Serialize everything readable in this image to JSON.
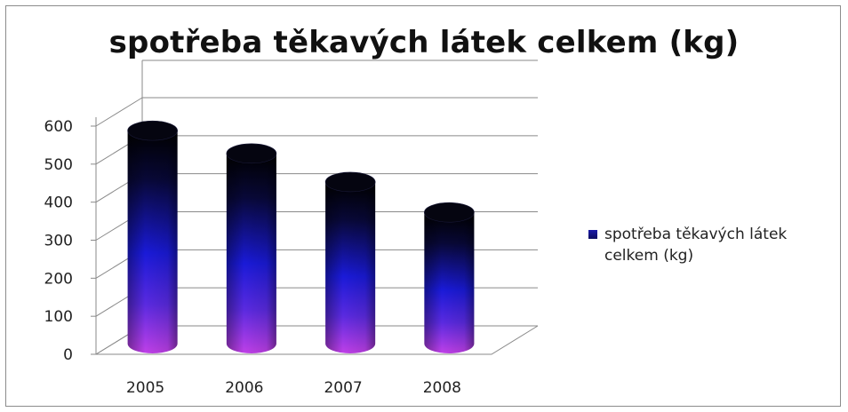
{
  "chart_data": {
    "type": "bar",
    "title": "spotřeba těkavých látek celkem (kg)",
    "categories": [
      "2005",
      "2006",
      "2007",
      "2008"
    ],
    "series": [
      {
        "name": "spotřeba těkavých látek celkem (kg)",
        "values": [
          560,
          500,
          425,
          345
        ]
      }
    ],
    "ylim": [
      0,
      600
    ],
    "yticks": [
      "0",
      "100",
      "200",
      "300",
      "400",
      "500",
      "600"
    ],
    "xlabel": "",
    "ylabel": "",
    "grid": true,
    "legend_position": "right",
    "style": "3d-cylinder",
    "colors": {
      "top": "#000000",
      "middle": "#1a1ae0",
      "bottom": "#b030e0"
    }
  }
}
